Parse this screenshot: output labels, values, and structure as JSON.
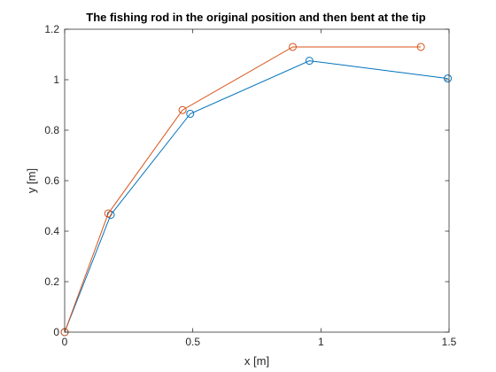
{
  "chart_data": {
    "type": "line",
    "title": "The fishing rod in the original position and then bent at the tip",
    "xlabel": "x [m]",
    "ylabel": "y [m]",
    "xlim": [
      0,
      1.5
    ],
    "ylim": [
      0,
      1.2
    ],
    "xticks": [
      0,
      0.5,
      1,
      1.5
    ],
    "xtick_labels": [
      "0",
      "0.5",
      "1",
      "1.5"
    ],
    "yticks": [
      0,
      0.2,
      0.4,
      0.6,
      0.8,
      1,
      1.2
    ],
    "ytick_labels": [
      "0",
      "0.2",
      "0.4",
      "0.6",
      "0.8",
      "1",
      "1.2"
    ],
    "grid": false,
    "marker": "circle",
    "series": [
      {
        "color": "#0072BD",
        "x": [
          0,
          0.18,
          0.49,
          0.955,
          1.495
        ],
        "y": [
          0,
          0.465,
          0.865,
          1.075,
          1.005
        ]
      },
      {
        "color": "#D95319",
        "x": [
          0,
          0.17,
          0.46,
          0.89,
          1.39
        ],
        "y": [
          0,
          0.47,
          0.88,
          1.13,
          1.13
        ]
      }
    ]
  }
}
